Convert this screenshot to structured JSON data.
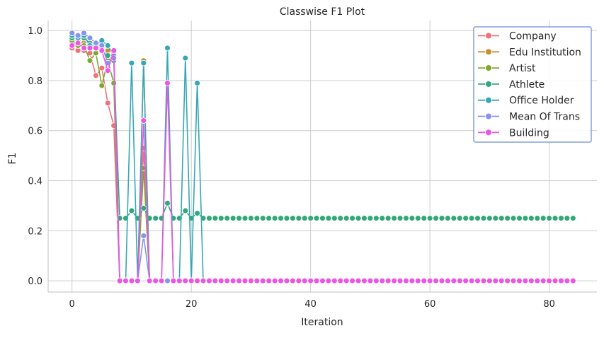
{
  "chart_data": {
    "type": "line",
    "title": "Classwise F1 Plot",
    "xlabel": "Iteration",
    "ylabel": "F1",
    "xlim": [
      -4,
      88
    ],
    "ylim": [
      -0.045,
      1.04
    ],
    "xticks": [
      0,
      20,
      40,
      60,
      80
    ],
    "yticks": [
      0.0,
      0.2,
      0.4,
      0.6,
      0.8,
      1.0
    ],
    "grid": true,
    "legend_position": "top-right",
    "x": [
      0,
      1,
      2,
      3,
      4,
      5,
      6,
      7,
      8,
      9,
      10,
      11,
      12,
      13,
      14,
      15,
      16,
      17,
      18,
      19,
      20,
      21,
      22,
      23,
      24,
      25,
      26,
      27,
      28,
      29,
      30,
      31,
      32,
      33,
      34,
      35,
      36,
      37,
      38,
      39,
      40,
      41,
      42,
      43,
      44,
      45,
      46,
      47,
      48,
      49,
      50,
      51,
      52,
      53,
      54,
      55,
      56,
      57,
      58,
      59,
      60,
      61,
      62,
      63,
      64,
      65,
      66,
      67,
      68,
      69,
      70,
      71,
      72,
      73,
      74,
      75,
      76,
      77,
      78,
      79,
      80,
      81,
      82,
      83,
      84
    ],
    "series": [
      {
        "name": "Company",
        "color": "#f0717a",
        "head": [
          0.93,
          0.92,
          0.92,
          0.91,
          0.82,
          0.85,
          0.71,
          0.62,
          0.0,
          0.0,
          0.0,
          0.0,
          0.53,
          0.0,
          0.0,
          0.0,
          0.0,
          0.0,
          0.0,
          0.0,
          0.0,
          0.0,
          0.0
        ],
        "tail": 0.0
      },
      {
        "name": "Edu Institution",
        "color": "#c88f35",
        "head": [
          0.95,
          0.96,
          0.95,
          0.95,
          0.94,
          0.93,
          0.92,
          0.91,
          0.0,
          0.0,
          0.0,
          0.0,
          0.88,
          0.0,
          0.0,
          0.0,
          0.0,
          0.0,
          0.0,
          0.0,
          0.0,
          0.0,
          0.0
        ],
        "tail": 0.0
      },
      {
        "name": "Artist",
        "color": "#7fa62e",
        "head": [
          0.96,
          0.94,
          0.94,
          0.88,
          0.91,
          0.78,
          0.88,
          0.79,
          0.0,
          0.0,
          0.0,
          0.0,
          0.45,
          0.0,
          0.0,
          0.0,
          0.0,
          0.0,
          0.0,
          0.0,
          0.0,
          0.0,
          0.0
        ],
        "tail": 0.0
      },
      {
        "name": "Athlete",
        "color": "#32a87a",
        "head": [
          0.97,
          0.97,
          0.97,
          0.95,
          0.93,
          0.92,
          0.9,
          0.88,
          0.25,
          0.25,
          0.28,
          0.25,
          0.29,
          0.25,
          0.25,
          0.25,
          0.31,
          0.25,
          0.25,
          0.28,
          0.25,
          0.27,
          0.25
        ],
        "tail": 0.25
      },
      {
        "name": "Office Holder",
        "color": "#36a7b6",
        "head": [
          0.98,
          0.97,
          0.98,
          0.94,
          0.94,
          0.96,
          0.94,
          0.9,
          0.0,
          0.0,
          0.87,
          0.0,
          0.87,
          0.0,
          0.0,
          0.0,
          0.93,
          0.0,
          0.0,
          0.89,
          0.0,
          0.79,
          0.0
        ],
        "tail": 0.0
      },
      {
        "name": "Mean Of Trans",
        "color": "#8594ef",
        "head": [
          0.99,
          0.98,
          0.99,
          0.97,
          0.95,
          0.94,
          0.87,
          0.89,
          0.0,
          0.0,
          0.0,
          0.0,
          0.18,
          0.0,
          0.0,
          0.0,
          0.0,
          0.0,
          0.0,
          0.0,
          0.0,
          0.0,
          0.0
        ],
        "tail": 0.0
      },
      {
        "name": "Building",
        "color": "#eb56e4",
        "head": [
          0.94,
          0.95,
          0.93,
          0.93,
          0.93,
          0.92,
          0.84,
          0.92,
          0.0,
          0.0,
          0.0,
          0.0,
          0.64,
          0.0,
          0.0,
          0.0,
          0.79,
          0.0,
          0.0,
          0.0,
          0.0,
          0.0,
          0.0
        ],
        "tail": 0.0
      }
    ]
  }
}
